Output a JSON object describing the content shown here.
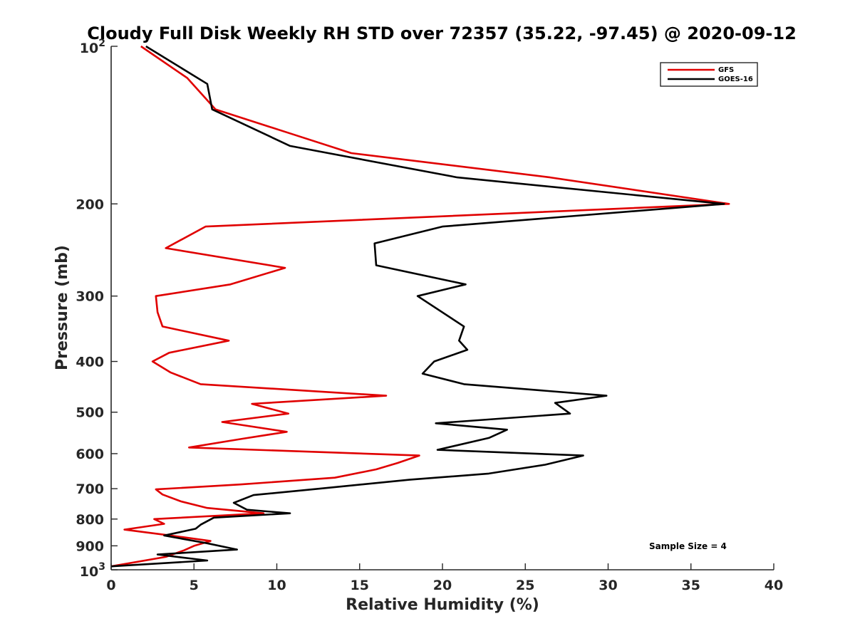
{
  "chart_data": {
    "type": "line",
    "title": "Cloudy Full Disk Weekly RH STD over 72357 (35.22, -97.45) @ 2020-09-12",
    "xlabel": "Relative Humidity (%)",
    "ylabel": "Pressure (mb)",
    "xlim": [
      0,
      40
    ],
    "ylim": [
      100,
      1000
    ],
    "yscale": "log",
    "y_reversed": true,
    "grid": false,
    "legend_position": "top-right",
    "x_ticks": [
      "0",
      "5",
      "10",
      "15",
      "20",
      "25",
      "30",
      "35",
      "40"
    ],
    "y_ticks": [
      {
        "value": 200,
        "label": "200"
      },
      {
        "value": 300,
        "label": "300"
      },
      {
        "value": 400,
        "label": "400"
      },
      {
        "value": 500,
        "label": "500"
      },
      {
        "value": 600,
        "label": "600"
      },
      {
        "value": 700,
        "label": "700"
      },
      {
        "value": 800,
        "label": "800"
      },
      {
        "value": 900,
        "label": "900"
      }
    ],
    "y_power_ticks": [
      {
        "value": 100,
        "base": "10",
        "exp": "2"
      },
      {
        "value": 1000,
        "base": "10",
        "exp": "3"
      }
    ],
    "annotation": "Sample Size = 4",
    "series": [
      {
        "name": "GFS",
        "color": "#e00000",
        "points": [
          [
            1.8,
            100
          ],
          [
            4.6,
            115
          ],
          [
            6.3,
            132
          ],
          [
            10.6,
            146
          ],
          [
            14.5,
            160
          ],
          [
            26.5,
            178
          ],
          [
            37.3,
            200
          ],
          [
            5.7,
            221
          ],
          [
            3.3,
            243
          ],
          [
            10.5,
            265
          ],
          [
            7.2,
            285
          ],
          [
            2.7,
            300
          ],
          [
            2.8,
            322
          ],
          [
            3.1,
            343
          ],
          [
            7.1,
            365
          ],
          [
            3.5,
            385
          ],
          [
            2.5,
            400
          ],
          [
            3.6,
            420
          ],
          [
            5.4,
            442
          ],
          [
            16.6,
            465
          ],
          [
            8.5,
            482
          ],
          [
            10.7,
            503
          ],
          [
            6.7,
            522
          ],
          [
            10.6,
            545
          ],
          [
            7.9,
            562
          ],
          [
            4.7,
            584
          ],
          [
            18.6,
            605
          ],
          [
            17.3,
            625
          ],
          [
            16.0,
            643
          ],
          [
            13.5,
            667
          ],
          [
            7.8,
            687
          ],
          [
            2.7,
            702
          ],
          [
            3.1,
            718
          ],
          [
            4.2,
            740
          ],
          [
            5.8,
            762
          ],
          [
            9.2,
            780
          ],
          [
            2.6,
            800
          ],
          [
            3.2,
            817
          ],
          [
            0.8,
            838
          ],
          [
            3.6,
            860
          ],
          [
            6.0,
            881
          ],
          [
            5.0,
            900
          ],
          [
            4.4,
            918
          ],
          [
            3.3,
            945
          ],
          [
            0.0,
            985
          ]
        ]
      },
      {
        "name": "GOES-16",
        "color": "#000000",
        "points": [
          [
            2.1,
            100
          ],
          [
            5.8,
            118
          ],
          [
            6.1,
            132
          ],
          [
            10.8,
            155
          ],
          [
            20.9,
            178
          ],
          [
            37.0,
            200
          ],
          [
            20.0,
            221
          ],
          [
            15.9,
            238
          ],
          [
            16.0,
            262
          ],
          [
            21.4,
            285
          ],
          [
            18.5,
            300
          ],
          [
            21.3,
            343
          ],
          [
            21.0,
            365
          ],
          [
            21.5,
            380
          ],
          [
            19.5,
            400
          ],
          [
            18.8,
            422
          ],
          [
            21.3,
            442
          ],
          [
            29.9,
            465
          ],
          [
            26.8,
            480
          ],
          [
            27.7,
            503
          ],
          [
            19.6,
            525
          ],
          [
            23.9,
            540
          ],
          [
            22.8,
            560
          ],
          [
            19.7,
            590
          ],
          [
            28.5,
            605
          ],
          [
            26.2,
            630
          ],
          [
            22.8,
            655
          ],
          [
            18.0,
            673
          ],
          [
            12.6,
            700
          ],
          [
            8.6,
            720
          ],
          [
            7.4,
            745
          ],
          [
            8.2,
            768
          ],
          [
            10.8,
            780
          ],
          [
            6.2,
            795
          ],
          [
            5.4,
            820
          ],
          [
            5.1,
            835
          ],
          [
            3.2,
            860
          ],
          [
            5.8,
            890
          ],
          [
            7.6,
            915
          ],
          [
            2.8,
            935
          ],
          [
            5.8,
            960
          ],
          [
            0.0,
            985
          ]
        ]
      }
    ]
  }
}
